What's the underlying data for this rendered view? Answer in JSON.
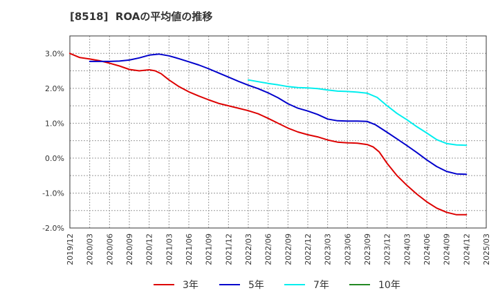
{
  "chart_data": {
    "type": "line",
    "title": "[8518]  ROAの平均値の推移",
    "xlabel": "",
    "ylabel": "",
    "x_tick_labels": [
      "2019/12",
      "2020/03",
      "2020/06",
      "2020/09",
      "2020/12",
      "2021/03",
      "2021/06",
      "2021/09",
      "2021/12",
      "2022/03",
      "2022/06",
      "2022/09",
      "2022/12",
      "2023/03",
      "2023/06",
      "2023/09",
      "2023/12",
      "2024/03",
      "2024/06",
      "2024/09",
      "2024/12",
      "2025/03"
    ],
    "y_tick_labels": [
      "3.0%",
      "2.0%",
      "1.0%",
      "0.0%",
      "-1.0%",
      "-2.0%"
    ],
    "y_tick_values": [
      3.0,
      2.0,
      1.0,
      0.0,
      -1.0,
      -2.0
    ],
    "ylim": [
      -2.0,
      3.5
    ],
    "x_count": 22,
    "grid": true,
    "legend_position": "bottom",
    "series": [
      {
        "name": "3年",
        "color": "#dd0000",
        "points": [
          [
            0,
            3.0
          ],
          [
            0.5,
            2.88
          ],
          [
            1,
            2.84
          ],
          [
            1.5,
            2.79
          ],
          [
            2,
            2.72
          ],
          [
            2.5,
            2.64
          ],
          [
            3,
            2.54
          ],
          [
            3.5,
            2.5
          ],
          [
            4,
            2.53
          ],
          [
            4.3,
            2.5
          ],
          [
            4.6,
            2.42
          ],
          [
            5,
            2.24
          ],
          [
            5.5,
            2.05
          ],
          [
            6,
            1.9
          ],
          [
            6.5,
            1.78
          ],
          [
            7,
            1.67
          ],
          [
            7.5,
            1.57
          ],
          [
            8,
            1.5
          ],
          [
            8.5,
            1.43
          ],
          [
            9,
            1.36
          ],
          [
            9.5,
            1.27
          ],
          [
            10,
            1.14
          ],
          [
            10.5,
            1.0
          ],
          [
            11,
            0.86
          ],
          [
            11.5,
            0.75
          ],
          [
            12,
            0.67
          ],
          [
            12.5,
            0.61
          ],
          [
            13,
            0.52
          ],
          [
            13.5,
            0.46
          ],
          [
            14,
            0.44
          ],
          [
            14.5,
            0.43
          ],
          [
            15,
            0.39
          ],
          [
            15.3,
            0.32
          ],
          [
            15.6,
            0.18
          ],
          [
            16,
            -0.15
          ],
          [
            16.5,
            -0.5
          ],
          [
            17,
            -0.78
          ],
          [
            17.5,
            -1.03
          ],
          [
            18,
            -1.25
          ],
          [
            18.5,
            -1.43
          ],
          [
            19,
            -1.55
          ],
          [
            19.5,
            -1.62
          ],
          [
            20,
            -1.62
          ]
        ]
      },
      {
        "name": "5年",
        "color": "#0000cc",
        "points": [
          [
            1,
            2.77
          ],
          [
            1.5,
            2.77
          ],
          [
            2,
            2.77
          ],
          [
            2.5,
            2.78
          ],
          [
            3,
            2.81
          ],
          [
            3.5,
            2.87
          ],
          [
            4,
            2.95
          ],
          [
            4.5,
            2.98
          ],
          [
            5,
            2.93
          ],
          [
            5.5,
            2.85
          ],
          [
            6,
            2.76
          ],
          [
            6.5,
            2.67
          ],
          [
            7,
            2.56
          ],
          [
            7.5,
            2.44
          ],
          [
            8,
            2.32
          ],
          [
            8.5,
            2.2
          ],
          [
            9,
            2.09
          ],
          [
            9.5,
            1.99
          ],
          [
            10,
            1.87
          ],
          [
            10.5,
            1.73
          ],
          [
            11,
            1.56
          ],
          [
            11.5,
            1.43
          ],
          [
            12,
            1.35
          ],
          [
            12.5,
            1.25
          ],
          [
            13,
            1.12
          ],
          [
            13.5,
            1.07
          ],
          [
            14,
            1.06
          ],
          [
            14.5,
            1.06
          ],
          [
            15,
            1.05
          ],
          [
            15.4,
            0.96
          ],
          [
            16,
            0.74
          ],
          [
            16.5,
            0.55
          ],
          [
            17,
            0.36
          ],
          [
            17.5,
            0.16
          ],
          [
            18,
            -0.05
          ],
          [
            18.5,
            -0.24
          ],
          [
            19,
            -0.38
          ],
          [
            19.5,
            -0.45
          ],
          [
            20,
            -0.46
          ]
        ]
      },
      {
        "name": "7年",
        "color": "#00eeee",
        "points": [
          [
            9,
            2.24
          ],
          [
            9.5,
            2.19
          ],
          [
            10,
            2.14
          ],
          [
            10.5,
            2.1
          ],
          [
            11,
            2.05
          ],
          [
            11.5,
            2.02
          ],
          [
            12,
            2.01
          ],
          [
            12.5,
            1.99
          ],
          [
            13,
            1.95
          ],
          [
            13.5,
            1.92
          ],
          [
            14,
            1.91
          ],
          [
            14.5,
            1.89
          ],
          [
            15,
            1.86
          ],
          [
            15.5,
            1.74
          ],
          [
            16,
            1.5
          ],
          [
            16.5,
            1.28
          ],
          [
            17,
            1.1
          ],
          [
            17.5,
            0.9
          ],
          [
            18,
            0.72
          ],
          [
            18.5,
            0.53
          ],
          [
            19,
            0.42
          ],
          [
            19.5,
            0.38
          ],
          [
            20,
            0.37
          ]
        ]
      },
      {
        "name": "10年",
        "color": "#228822",
        "points": []
      }
    ]
  }
}
